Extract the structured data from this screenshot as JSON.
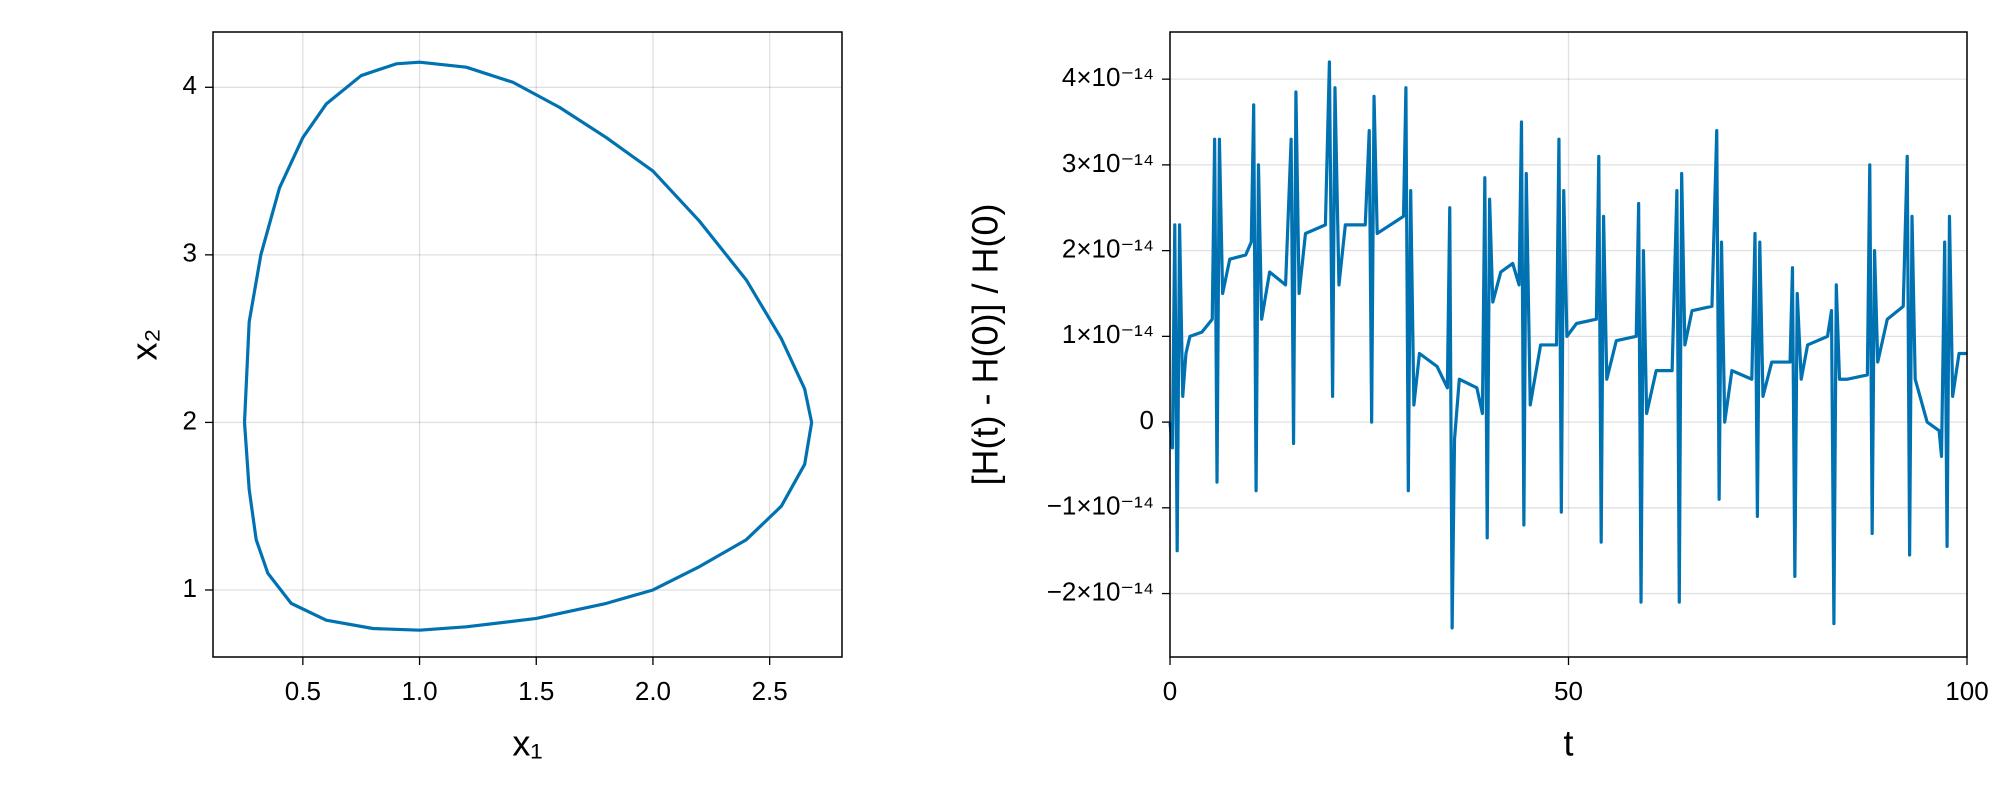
{
  "chart_data": [
    {
      "type": "line",
      "xlabel": "x₁",
      "ylabel": "x₂",
      "color": "#0072b2",
      "grid": true,
      "xlim": [
        0.115,
        2.81
      ],
      "ylim": [
        0.6,
        4.33
      ],
      "xticks": [
        0.5,
        {
          "value": 1,
          "label": "1.0"
        },
        1.5,
        {
          "value": 2,
          "label": "2.0"
        },
        2.5
      ],
      "yticks": [
        1,
        2,
        3,
        4
      ],
      "x": [
        0.25,
        0.27,
        0.32,
        0.4,
        0.5,
        0.6,
        0.75,
        0.9,
        1.0,
        1.2,
        1.4,
        1.6,
        1.8,
        2.0,
        2.2,
        2.4,
        2.55,
        2.65,
        2.68,
        2.65,
        2.55,
        2.4,
        2.2,
        2.0,
        1.8,
        1.5,
        1.2,
        1.0,
        0.8,
        0.6,
        0.45,
        0.35,
        0.3,
        0.27,
        0.25
      ],
      "values": [
        2.0,
        2.6,
        3.0,
        3.4,
        3.7,
        3.9,
        4.07,
        4.14,
        4.15,
        4.12,
        4.03,
        3.88,
        3.7,
        3.5,
        3.2,
        2.85,
        2.5,
        2.2,
        2.0,
        1.75,
        1.5,
        1.3,
        1.14,
        1.0,
        0.92,
        0.83,
        0.78,
        0.76,
        0.77,
        0.82,
        0.92,
        1.1,
        1.3,
        1.6,
        2.0
      ]
    },
    {
      "type": "line",
      "xlabel": "t",
      "ylabel": "[H(t) - H(0)] / H(0)",
      "color": "#0072b2",
      "grid": true,
      "xlim": [
        0,
        100
      ],
      "ylim": [
        -2.74e-14,
        4.55e-14
      ],
      "xticks": [
        0,
        50,
        100
      ],
      "yticks": [
        {
          "value": -2e-14,
          "label": "−2×10⁻¹⁴"
        },
        {
          "value": -1e-14,
          "label": "−1×10⁻¹⁴"
        },
        0,
        {
          "value": 1e-14,
          "label": "1×10⁻¹⁴"
        },
        {
          "value": 2e-14,
          "label": "2×10⁻¹⁴"
        },
        {
          "value": 3e-14,
          "label": "3×10⁻¹⁴"
        },
        {
          "value": 4e-14,
          "label": "4×10⁻¹⁴"
        }
      ],
      "x": [
        0,
        0.3,
        0.6,
        0.9,
        1.2,
        1.6,
        2.0,
        2.5,
        4,
        5.3,
        5.6,
        5.9,
        6.2,
        6.6,
        7.5,
        9.5,
        10.2,
        10.5,
        10.8,
        11.1,
        11.5,
        12.5,
        14.5,
        15.2,
        15.5,
        15.8,
        16.2,
        17,
        19.5,
        20,
        20.4,
        20.7,
        21.2,
        22,
        24.5,
        25.0,
        25.3,
        25.6,
        26,
        29.3,
        29.6,
        29.9,
        30.2,
        30.6,
        31.3,
        33.5,
        34.8,
        35.1,
        35.4,
        35.7,
        36.3,
        38.5,
        39.2,
        39.5,
        39.8,
        40.1,
        40.5,
        41.5,
        43,
        43.8,
        44.1,
        44.4,
        44.7,
        45.2,
        46.5,
        48.5,
        48.8,
        49.1,
        49.4,
        49.8,
        51,
        53.5,
        53.8,
        54.1,
        54.4,
        54.8,
        56,
        58.5,
        58.8,
        59.1,
        59.4,
        59.8,
        61,
        63,
        63.6,
        63.9,
        64.2,
        64.6,
        65.5,
        68,
        68.6,
        68.9,
        69.2,
        69.6,
        70.5,
        73,
        73.4,
        73.7,
        74,
        74.4,
        75.5,
        77.8,
        78.1,
        78.4,
        78.7,
        79.2,
        80,
        82.5,
        83,
        83.3,
        83.6,
        84,
        85,
        87.5,
        87.8,
        88.1,
        88.4,
        88.8,
        90,
        92,
        92.5,
        92.8,
        93.1,
        93.5,
        95,
        96.5,
        96.8,
        97.2,
        97.5,
        97.8,
        98.2,
        99,
        100
      ],
      "values": [
        0,
        -3e-15,
        2.3e-14,
        -1.5e-14,
        2.3e-14,
        3e-15,
        8e-15,
        1e-14,
        1.05e-14,
        1.2e-14,
        3.3e-14,
        -7e-15,
        3.3e-14,
        1.5e-14,
        1.9e-14,
        1.95e-14,
        2.1e-14,
        3.7e-14,
        -8e-15,
        3e-14,
        1.2e-14,
        1.75e-14,
        1.6e-14,
        3.3e-14,
        -2.5e-15,
        3.85e-14,
        1.5e-14,
        2.2e-14,
        2.3e-14,
        4.2e-14,
        3e-15,
        3.9e-14,
        1.6e-14,
        2.3e-14,
        2.3e-14,
        3.4e-14,
        0,
        3.8e-14,
        2.2e-14,
        2.4e-14,
        3.9e-14,
        -8e-15,
        2.7e-14,
        2e-15,
        8e-15,
        6.5e-15,
        4e-15,
        2.5e-14,
        -2.4e-14,
        -2e-15,
        5e-15,
        4e-15,
        1e-15,
        2.85e-14,
        -1.35e-14,
        2.6e-14,
        1.4e-14,
        1.75e-14,
        1.85e-14,
        1.6e-14,
        3.5e-14,
        -1.2e-14,
        2.9e-14,
        2e-15,
        9e-15,
        9e-15,
        3.3e-14,
        -1.05e-14,
        2.7e-14,
        1e-14,
        1.15e-14,
        1.2e-14,
        3.1e-14,
        -1.4e-14,
        2.4e-14,
        5e-15,
        9.5e-15,
        1e-14,
        2.55e-14,
        -2.1e-14,
        2e-14,
        1e-15,
        6e-15,
        6e-15,
        2.7e-14,
        -2.1e-14,
        2.9e-14,
        9e-15,
        1.3e-14,
        1.35e-14,
        3.4e-14,
        -9e-15,
        2.1e-14,
        0,
        6e-15,
        5e-15,
        2.2e-14,
        -1.1e-14,
        2.1e-14,
        3e-15,
        7e-15,
        7e-15,
        1.8e-14,
        -1.8e-14,
        1.5e-14,
        5e-15,
        9e-15,
        1e-14,
        1.3e-14,
        -2.35e-14,
        1.6e-14,
        5e-15,
        5e-15,
        5.5e-15,
        3e-14,
        -1.3e-14,
        2e-14,
        7e-15,
        1.2e-14,
        1.35e-14,
        3.1e-14,
        -1.55e-14,
        2.4e-14,
        5e-15,
        0,
        -1e-15,
        -4e-15,
        2.1e-14,
        -1.45e-14,
        2.4e-14,
        3e-15,
        8e-15,
        8e-15
      ]
    }
  ]
}
